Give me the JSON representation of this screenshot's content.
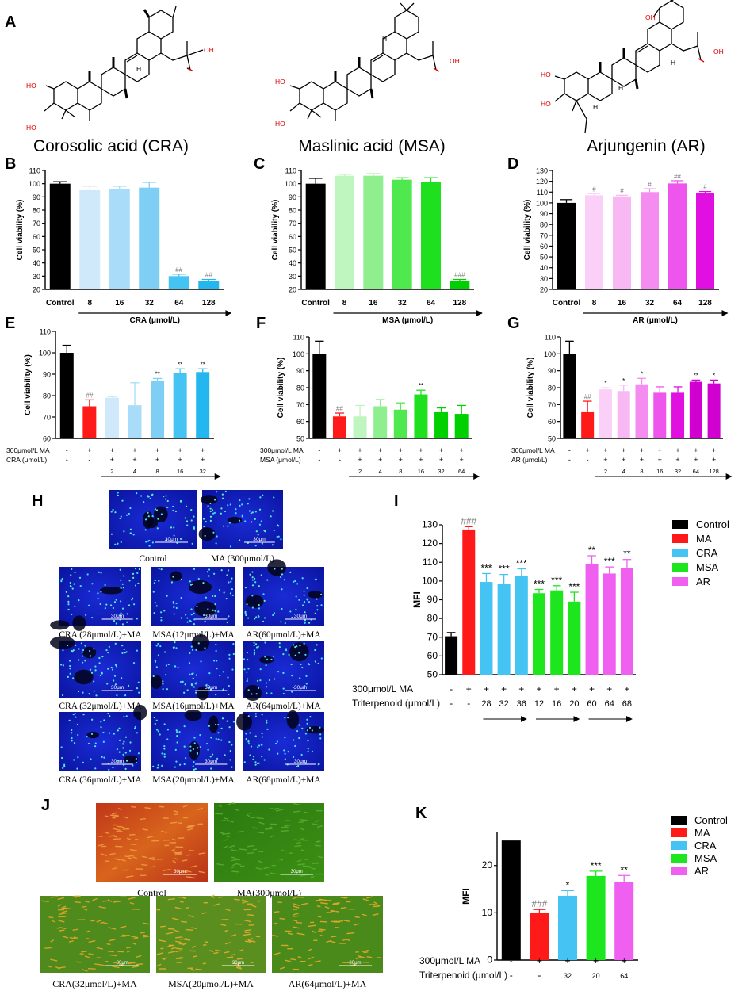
{
  "panels": {
    "A": "A",
    "B": "B",
    "C": "C",
    "D": "D",
    "E": "E",
    "F": "F",
    "G": "G",
    "H": "H",
    "I": "I",
    "J": "J",
    "K": "K"
  },
  "structures": [
    {
      "name": "Corosolic acid (CRA)",
      "oh": [
        "HO",
        "HO",
        "OH",
        "H"
      ]
    },
    {
      "name": "Maslinic acid (MSA)",
      "oh": [
        "HO",
        "HO",
        "OH",
        "H"
      ]
    },
    {
      "name": "Arjungenin (AR)",
      "oh": [
        "HO",
        "HO",
        "OH",
        "OH",
        "H",
        "H",
        "H"
      ]
    }
  ],
  "micrographs": {
    "scale": "30μm",
    "H": [
      "Control",
      "MA (300μmol/L)",
      "CRA (28μmol/L)+MA",
      "MSA(12μmol/L)+MA",
      "AR(60μmol/L)+MA",
      "CRA (32μmol/L)+MA",
      "MSA(16μmol/L)+MA",
      "AR(64μmol/L)+MA",
      "CRA (36μmol/L)+MA",
      "MSA(20μmol/L)+MA",
      "AR(68μmol/L)+MA"
    ],
    "J": [
      "Control",
      "MA(300μmol/L)",
      "CRA(32μmol/L)+MA",
      "MSA(20μmol/L)+MA",
      "AR(64μmol/L)+MA"
    ]
  },
  "colors": {
    "control": "#000000",
    "ma": "#ff1a1a",
    "cra": "#45c3f2",
    "msa": "#1ee61e",
    "ar": "#f060f0",
    "cra_shades": [
      "#cfe9fb",
      "#a8dcf8",
      "#7fcff5",
      "#45c3f2",
      "#24b7ef"
    ],
    "msa_shades": [
      "#bff5bf",
      "#8fef8f",
      "#4fe84f",
      "#1fe01f",
      "#00d000"
    ],
    "ar_shades": [
      "#fbd0f8",
      "#f8b8f4",
      "#f58cf0",
      "#ee55ec",
      "#e010e0",
      "#d000d0"
    ]
  },
  "chart_data": [
    {
      "id": "B",
      "type": "bar",
      "ylabel": "Cell viability (%)",
      "xlabel": "CRA (μmol/L)",
      "ylim": [
        20,
        110
      ],
      "yticks": [
        20,
        30,
        40,
        50,
        60,
        70,
        80,
        90,
        100,
        110
      ],
      "categories": [
        "Control",
        "8",
        "16",
        "32",
        "64",
        "128"
      ],
      "values": [
        100,
        95,
        96,
        97,
        30,
        26
      ],
      "errors": [
        1.5,
        3,
        2,
        4,
        1.5,
        1.5
      ],
      "annotations": [
        "",
        "",
        "",
        "",
        "##",
        "##"
      ]
    },
    {
      "id": "C",
      "type": "bar",
      "ylabel": "Cell viability (%)",
      "xlabel": "MSA (μmol/L)",
      "ylim": [
        20,
        110
      ],
      "yticks": [
        20,
        30,
        40,
        50,
        60,
        70,
        80,
        90,
        100,
        110
      ],
      "categories": [
        "Control",
        "8",
        "16",
        "32",
        "64",
        "128"
      ],
      "values": [
        100,
        106,
        106,
        103,
        101,
        26
      ],
      "errors": [
        4,
        1,
        1.5,
        1.5,
        3.5,
        1.5
      ],
      "annotations": [
        "",
        "",
        "",
        "",
        "",
        "###"
      ]
    },
    {
      "id": "D",
      "type": "bar",
      "ylabel": "Cell viability (%)",
      "xlabel": "AR (μmol/L)",
      "ylim": [
        20,
        130
      ],
      "yticks": [
        20,
        30,
        40,
        50,
        60,
        70,
        80,
        90,
        100,
        110,
        120,
        130
      ],
      "categories": [
        "Control",
        "8",
        "16",
        "32",
        "64",
        "128"
      ],
      "values": [
        100,
        107,
        106,
        110,
        118,
        109
      ],
      "errors": [
        3,
        1.5,
        1,
        3,
        2.5,
        1.5
      ],
      "annotations": [
        "",
        "#",
        "#",
        "#",
        "##",
        "#"
      ]
    },
    {
      "id": "E",
      "type": "bar",
      "ylabel": "Cell viability (%)",
      "ylim": [
        60,
        110
      ],
      "yticks": [
        60,
        70,
        80,
        90,
        100,
        110
      ],
      "row1_label": "300μmol/L MA",
      "row2_label": "CRA (μmol/L)",
      "row1": [
        "-",
        "+",
        "+",
        "+",
        "+",
        "+",
        "+"
      ],
      "row2": [
        "-",
        "-",
        "+",
        "+",
        "+",
        "+",
        "+"
      ],
      "doses": [
        "2",
        "4",
        "8",
        "16",
        "32"
      ],
      "values": [
        100,
        75,
        79,
        75.5,
        87,
        90.5,
        91
      ],
      "errors": [
        3.5,
        3,
        0.5,
        10.5,
        1,
        2,
        1.5
      ],
      "annotations": [
        "",
        "##",
        "",
        "",
        "**",
        "**",
        "**"
      ]
    },
    {
      "id": "F",
      "type": "bar",
      "ylabel": "Cell viability (%)",
      "ylim": [
        50,
        110
      ],
      "yticks": [
        50,
        60,
        70,
        80,
        90,
        100,
        110
      ],
      "row1_label": "300μmol/L MA",
      "row2_label": "MSA (μmol/L)",
      "row1": [
        "-",
        "+",
        "+",
        "+",
        "+",
        "+",
        "+",
        "+"
      ],
      "row2": [
        "-",
        "-",
        "+",
        "+",
        "+",
        "+",
        "+",
        "+"
      ],
      "doses": [
        "2",
        "4",
        "8",
        "16",
        "32",
        "64"
      ],
      "values": [
        100,
        63,
        63,
        69,
        67,
        76,
        65.5,
        64.5
      ],
      "errors": [
        7.5,
        2,
        6.5,
        4,
        4,
        2.5,
        2.5,
        5
      ],
      "annotations": [
        "",
        "##",
        "",
        "",
        "",
        "**",
        "",
        ""
      ]
    },
    {
      "id": "G",
      "type": "bar",
      "ylabel": "Cell viability (%)",
      "ylim": [
        50,
        110
      ],
      "yticks": [
        50,
        60,
        70,
        80,
        90,
        100,
        110
      ],
      "row1_label": "300μmol/L MA",
      "row2_label": "AR (μmol/L)",
      "row1": [
        "-",
        "+",
        "+",
        "+",
        "+",
        "+",
        "+",
        "+",
        "+"
      ],
      "row2": [
        "-",
        "-",
        "+",
        "+",
        "+",
        "+",
        "+",
        "+",
        "+"
      ],
      "doses": [
        "2",
        "4",
        "8",
        "16",
        "32",
        "64",
        "128"
      ],
      "values": [
        100,
        65.5,
        79,
        78,
        82,
        77,
        77,
        83.5,
        82.5
      ],
      "errors": [
        7.5,
        6.5,
        1,
        3.5,
        3.5,
        3.5,
        3.5,
        1,
        2
      ],
      "annotations": [
        "",
        "##",
        "*",
        "*",
        "*",
        "",
        "",
        "**",
        "*"
      ]
    },
    {
      "id": "I",
      "type": "bar",
      "ylabel": "MFI",
      "ylim": [
        50,
        130
      ],
      "yticks": [
        50,
        60,
        70,
        80,
        90,
        100,
        110,
        120,
        130
      ],
      "row1_label": "300μmol/L MA",
      "row2_label": "Triterpenoid (μmol/L)",
      "row1": [
        "-",
        "+",
        "+",
        "+",
        "+",
        "+",
        "+",
        "+",
        "+",
        "+",
        "+"
      ],
      "row2": [
        "-",
        "-",
        "28",
        "32",
        "36",
        "12",
        "16",
        "20",
        "60",
        "64",
        "68"
      ],
      "values": [
        70.5,
        127.5,
        99.5,
        98.5,
        102.5,
        93.5,
        95,
        89,
        109,
        104,
        107
      ],
      "errors": [
        2,
        1.5,
        4.5,
        5,
        4,
        2,
        2.5,
        5,
        4.5,
        3.5,
        4.5
      ],
      "groups": [
        "control",
        "ma",
        "cra",
        "cra",
        "cra",
        "msa",
        "msa",
        "msa",
        "ar",
        "ar",
        "ar"
      ],
      "annotations": [
        "",
        "###",
        "***",
        "***",
        "***",
        "***",
        "***",
        "***",
        "**",
        "***",
        "**"
      ],
      "legend": [
        "Control",
        "MA",
        "CRA",
        "MSA",
        "AR"
      ]
    },
    {
      "id": "K",
      "type": "bar",
      "ylabel": "MFI",
      "ylim": [
        0,
        27
      ],
      "yticks": [
        0,
        10,
        20
      ],
      "row1_label": "300μmol/L MA",
      "row2_label": "Triterpenoid (μmol/L)",
      "row1": [
        "-",
        "+",
        "+",
        "+",
        "+"
      ],
      "row2": [
        "-",
        "-",
        "32",
        "20",
        "64"
      ],
      "values": [
        25.3,
        9.9,
        13.6,
        17.8,
        16.6
      ],
      "errors": [
        0,
        0.8,
        1.1,
        1.0,
        1.3
      ],
      "groups": [
        "control",
        "ma",
        "cra",
        "msa",
        "ar"
      ],
      "annotations": [
        "",
        "###",
        "*",
        "***",
        "**"
      ],
      "legend": [
        "Control",
        "MA",
        "CRA",
        "MSA",
        "AR"
      ]
    }
  ]
}
